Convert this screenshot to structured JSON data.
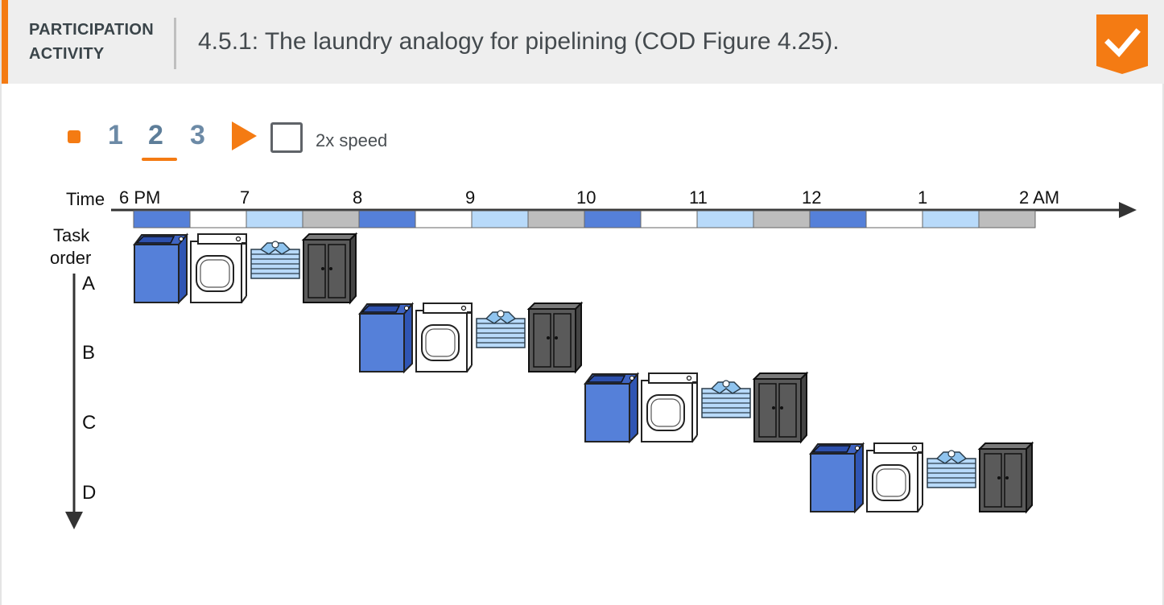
{
  "header": {
    "label_line1": "PARTICIPATION",
    "label_line2": "ACTIVITY",
    "title": "4.5.1: The laundry analogy for pipelining (COD Figure 4.25).",
    "completion_icon": "checkmark-icon",
    "accent_color": "#f47b13"
  },
  "controls": {
    "steps": [
      "1",
      "2",
      "3"
    ],
    "current_step": 2,
    "play_icon": "play-icon",
    "speed_label": "2x speed",
    "speed_checked": false
  },
  "diagram": {
    "time_label": "Time",
    "time_ticks": [
      "6 PM",
      "7",
      "8",
      "9",
      "10",
      "11",
      "12",
      "1",
      "2 AM"
    ],
    "task_label_line1": "Task",
    "task_label_line2": "order",
    "tasks": [
      "A",
      "B",
      "C",
      "D"
    ],
    "stages": [
      "washer",
      "dryer",
      "folder",
      "storer"
    ],
    "stage_colors": {
      "washer": "#5580d9",
      "dryer": "#ffffff",
      "folder": "#b8dafa",
      "storer": "#bdbdbd"
    }
  }
}
